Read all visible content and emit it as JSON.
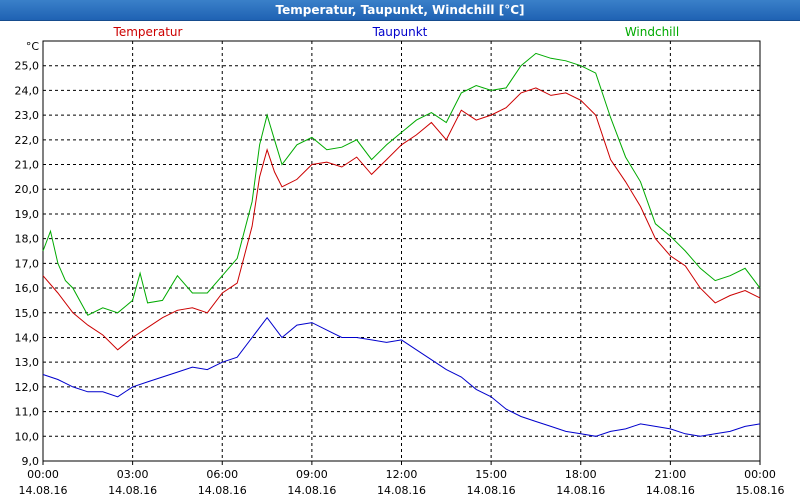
{
  "window": {
    "title": "Temperatur, Taupunkt, Windchill [°C]"
  },
  "chart_data": {
    "type": "line",
    "title": "Temperatur, Taupunkt, Windchill [°C]",
    "ylabel": "°C",
    "ylim": [
      9.0,
      26.0
    ],
    "xlim": [
      0,
      24
    ],
    "grid": true,
    "y_ticks": [
      "9,0",
      "10,0",
      "11,0",
      "12,0",
      "13,0",
      "14,0",
      "15,0",
      "16,0",
      "17,0",
      "18,0",
      "19,0",
      "20,0",
      "21,0",
      "22,0",
      "23,0",
      "24,0",
      "25,0"
    ],
    "x_ticks": [
      {
        "time": "00:00",
        "date": "14.08.16",
        "hour": 0
      },
      {
        "time": "03:00",
        "date": "14.08.16",
        "hour": 3
      },
      {
        "time": "06:00",
        "date": "14.08.16",
        "hour": 6
      },
      {
        "time": "09:00",
        "date": "14.08.16",
        "hour": 9
      },
      {
        "time": "12:00",
        "date": "14.08.16",
        "hour": 12
      },
      {
        "time": "15:00",
        "date": "14.08.16",
        "hour": 15
      },
      {
        "time": "18:00",
        "date": "14.08.16",
        "hour": 18
      },
      {
        "time": "21:00",
        "date": "14.08.16",
        "hour": 21
      },
      {
        "time": "00:00",
        "date": "15.08.16",
        "hour": 24
      }
    ],
    "series": [
      {
        "name": "Temperatur",
        "color": "#cc0000",
        "legend_pos": "left",
        "x": [
          0,
          0.5,
          1,
          1.5,
          2,
          2.5,
          3,
          3.5,
          4,
          4.5,
          5,
          5.5,
          6,
          6.5,
          7,
          7.25,
          7.5,
          7.75,
          8,
          8.5,
          9,
          9.5,
          10,
          10.5,
          11,
          11.5,
          12,
          12.5,
          13,
          13.5,
          14,
          14.5,
          15,
          15.5,
          16,
          16.5,
          17,
          17.5,
          18,
          18.5,
          19,
          19.5,
          20,
          20.5,
          21,
          21.5,
          22,
          22.5,
          23,
          23.5,
          24
        ],
        "values": [
          16.5,
          15.8,
          15.0,
          14.5,
          14.1,
          13.5,
          14.0,
          14.4,
          14.8,
          15.1,
          15.2,
          15.0,
          15.8,
          16.2,
          18.5,
          20.5,
          21.6,
          20.7,
          20.1,
          20.4,
          21.0,
          21.1,
          20.9,
          21.3,
          20.6,
          21.2,
          21.8,
          22.2,
          22.7,
          22.0,
          23.2,
          22.8,
          23.0,
          23.3,
          23.9,
          24.1,
          23.8,
          23.9,
          23.6,
          23.0,
          21.2,
          20.3,
          19.3,
          18.0,
          17.3,
          16.9,
          16.0,
          15.4,
          15.7,
          15.9,
          15.6
        ]
      },
      {
        "name": "Taupunkt",
        "color": "#0000cc",
        "legend_pos": "center",
        "x": [
          0,
          0.5,
          1,
          1.5,
          2,
          2.5,
          3,
          3.5,
          4,
          4.5,
          5,
          5.5,
          6,
          6.5,
          7,
          7.5,
          8,
          8.5,
          9,
          9.5,
          10,
          10.5,
          11,
          11.5,
          12,
          12.5,
          13,
          13.5,
          14,
          14.5,
          15,
          15.5,
          16,
          16.5,
          17,
          17.5,
          18,
          18.5,
          19,
          19.5,
          20,
          20.5,
          21,
          21.5,
          22,
          22.5,
          23,
          23.5,
          24
        ],
        "values": [
          12.5,
          12.3,
          12.0,
          11.8,
          11.8,
          11.6,
          12.0,
          12.2,
          12.4,
          12.6,
          12.8,
          12.7,
          13.0,
          13.2,
          14.0,
          14.8,
          14.0,
          14.5,
          14.6,
          14.3,
          14.0,
          14.0,
          13.9,
          13.8,
          13.9,
          13.5,
          13.1,
          12.7,
          12.4,
          11.9,
          11.6,
          11.1,
          10.8,
          10.6,
          10.4,
          10.2,
          10.1,
          10.0,
          10.2,
          10.3,
          10.5,
          10.4,
          10.3,
          10.1,
          10.0,
          10.1,
          10.2,
          10.4,
          10.5
        ]
      },
      {
        "name": "Windchill",
        "color": "#00aa00",
        "legend_pos": "right",
        "x": [
          0,
          0.25,
          0.5,
          0.75,
          1,
          1.5,
          2,
          2.5,
          3,
          3.25,
          3.5,
          4,
          4.5,
          5,
          5.5,
          6,
          6.5,
          7,
          7.25,
          7.5,
          7.75,
          8,
          8.5,
          9,
          9.5,
          10,
          10.5,
          11,
          11.5,
          12,
          12.5,
          13,
          13.5,
          14,
          14.5,
          15,
          15.5,
          16,
          16.5,
          17,
          17.5,
          18,
          18.5,
          19,
          19.5,
          20,
          20.5,
          21,
          21.5,
          22,
          22.5,
          23,
          23.5,
          24
        ],
        "values": [
          17.5,
          18.3,
          17.0,
          16.3,
          16.0,
          14.9,
          15.2,
          15.0,
          15.5,
          16.6,
          15.4,
          15.5,
          16.5,
          15.8,
          15.8,
          16.5,
          17.2,
          19.5,
          21.8,
          23.0,
          22.0,
          21.0,
          21.8,
          22.1,
          21.6,
          21.7,
          22.0,
          21.2,
          21.8,
          22.3,
          22.8,
          23.1,
          22.7,
          23.9,
          24.2,
          24.0,
          24.1,
          25.0,
          25.5,
          25.3,
          25.2,
          25.0,
          24.7,
          22.9,
          21.3,
          20.3,
          18.6,
          18.1,
          17.5,
          16.8,
          16.3,
          16.5,
          16.8,
          16.0
        ]
      }
    ]
  }
}
